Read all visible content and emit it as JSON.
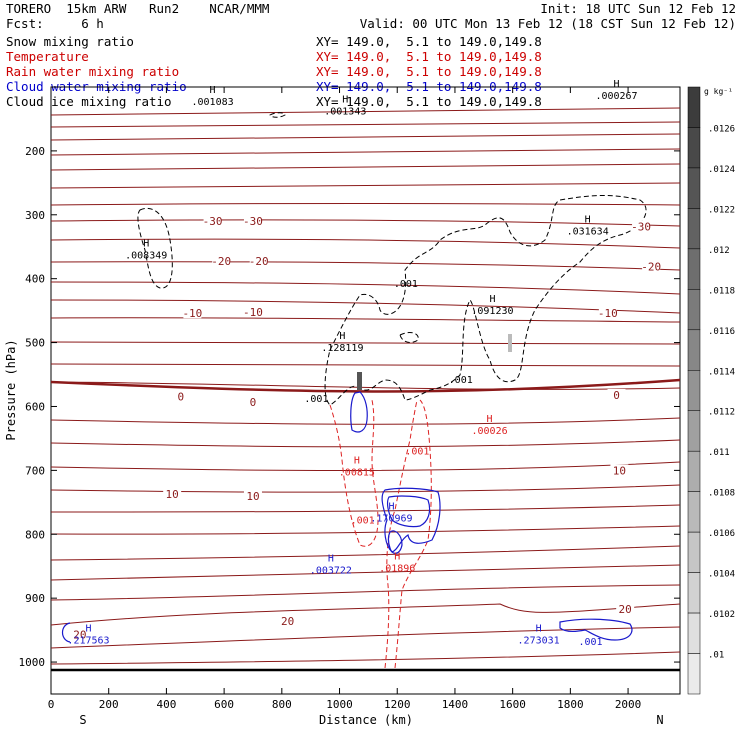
{
  "header": {
    "line1_left": "TORERO  15km ARW   Run2    NCAR/MMM",
    "line1_right": "Init: 18 UTC Sun 12 Feb 12",
    "line2_left": "Fcst:     6 h",
    "line2_right": "Valid: 00 UTC Mon 13 Feb 12 (18 CST Sun 12 Feb 12)",
    "legend": [
      {
        "label": "Snow mixing ratio",
        "xy": "XY= 149.0,  5.1 to 149.0,149.8",
        "color": "#000000"
      },
      {
        "label": "Temperature",
        "xy": "XY= 149.0,  5.1 to 149.0,149.8",
        "color": "#cc0000"
      },
      {
        "label": "Rain water mixing ratio",
        "xy": "XY= 149.0,  5.1 to 149.0,149.8",
        "color": "#cc0000"
      },
      {
        "label": "Cloud water mixing ratio",
        "xy": "XY= 149.0,  5.1 to 149.0,149.8",
        "color": "#0000cc"
      },
      {
        "label": "Cloud ice mixing ratio",
        "xy": "XY= 149.0,  5.1 to 149.0,149.8",
        "color": "#000000"
      }
    ]
  },
  "chart_data": {
    "type": "contour",
    "xlabel": "Distance (km)",
    "ylabel": "Pressure (hPa)",
    "xlim": [
      0,
      2180
    ],
    "ylim": [
      1050,
      100
    ],
    "x_ticks": [
      0,
      200,
      400,
      600,
      800,
      1000,
      1200,
      1400,
      1600,
      1800,
      2000
    ],
    "y_ticks": [
      200,
      300,
      400,
      500,
      600,
      700,
      800,
      900,
      1000
    ],
    "x_end_labels": {
      "left": "S",
      "right": "N"
    },
    "colorbar": {
      "unit": "g kg⁻¹",
      "ticks": [
        ".0126",
        ".0124",
        ".0122",
        ".012",
        ".0118",
        ".0116",
        ".0114",
        ".0112",
        ".011",
        ".0108",
        ".0106",
        ".0104",
        ".0102",
        ".01"
      ]
    },
    "temperature_labels": [
      {
        "text": "-30",
        "x": 560,
        "p": 310
      },
      {
        "text": "-30",
        "x": 700,
        "p": 310
      },
      {
        "text": "-30",
        "x": 2045,
        "p": 318
      },
      {
        "text": "-20",
        "x": 590,
        "p": 372
      },
      {
        "text": "-20",
        "x": 720,
        "p": 372
      },
      {
        "text": "-20",
        "x": 2080,
        "p": 381
      },
      {
        "text": "-10",
        "x": 490,
        "p": 454
      },
      {
        "text": "-10",
        "x": 700,
        "p": 452
      },
      {
        "text": "-10",
        "x": 1930,
        "p": 454
      },
      {
        "text": "0",
        "x": 450,
        "p": 584
      },
      {
        "text": "0",
        "x": 700,
        "p": 593
      },
      {
        "text": "0",
        "x": 1960,
        "p": 582
      },
      {
        "text": "10",
        "x": 420,
        "p": 737
      },
      {
        "text": "10",
        "x": 700,
        "p": 740
      },
      {
        "text": "10",
        "x": 1970,
        "p": 700
      },
      {
        "text": "20",
        "x": 100,
        "p": 957
      },
      {
        "text": "20",
        "x": 820,
        "p": 936
      },
      {
        "text": "20",
        "x": 1990,
        "p": 917
      }
    ],
    "snow_maxima": [
      {
        "text": ".008349",
        "x": 330,
        "p": 365
      },
      {
        "text": ".001",
        "x": 1230,
        "p": 410
      },
      {
        "text": ".128119",
        "x": 1010,
        "p": 510
      },
      {
        "text": ".091230",
        "x": 1530,
        "p": 452
      },
      {
        "text": ".001",
        "x": 1420,
        "p": 560
      },
      {
        "text": ".001",
        "x": 920,
        "p": 590
      },
      {
        "text": ".031634",
        "x": 1860,
        "p": 328
      }
    ],
    "ice_maxima": [
      {
        "text": ".001083",
        "x": 560,
        "p": 125
      },
      {
        "text": ".001343",
        "x": 1020,
        "p": 140
      },
      {
        "text": ".000267",
        "x": 1960,
        "p": 116
      }
    ],
    "rain_maxima": [
      {
        "text": ".00815",
        "x": 1060,
        "p": 705
      },
      {
        "text": ".001",
        "x": 1080,
        "p": 780
      },
      {
        "text": ".001",
        "x": 1270,
        "p": 672
      },
      {
        "text": ".00026",
        "x": 1520,
        "p": 640
      },
      {
        "text": ".01896",
        "x": 1200,
        "p": 855
      }
    ],
    "cloud_water_maxima": [
      {
        "text": ".170969",
        "x": 1180,
        "p": 777
      },
      {
        "text": ".003722",
        "x": 970,
        "p": 858
      },
      {
        "text": ".217563",
        "x": 130,
        "p": 968
      },
      {
        "text": ".273031",
        "x": 1690,
        "p": 968
      },
      {
        "text": ".001",
        "x": 1870,
        "p": 970
      }
    ]
  }
}
